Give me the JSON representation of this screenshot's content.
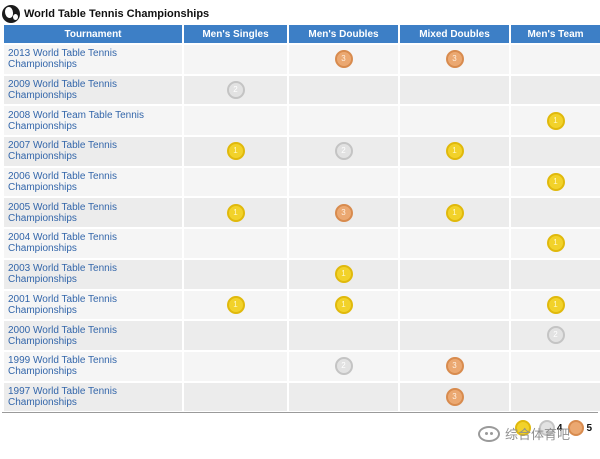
{
  "title": "World Table Tennis Championships",
  "columns": [
    "Tournament",
    "Men's Singles",
    "Men's Doubles",
    "Mixed Doubles",
    "Men's Team"
  ],
  "medal_colors": {
    "gold": "#f2d22a",
    "silver": "#e2e2e2",
    "bronze": "#eba871"
  },
  "medal_numbers": {
    "gold": "1",
    "silver": "2",
    "bronze": "3"
  },
  "rows": [
    {
      "name": "2013 World Table Tennis Championships",
      "medals": {
        "mens_singles": null,
        "mens_doubles": "bronze",
        "mixed_doubles": "bronze",
        "mens_team": null
      }
    },
    {
      "name": "2009 World Table Tennis Championships",
      "medals": {
        "mens_singles": "silver",
        "mens_doubles": null,
        "mixed_doubles": null,
        "mens_team": null
      }
    },
    {
      "name": "2008 World Team Table Tennis Championships",
      "medals": {
        "mens_singles": null,
        "mens_doubles": null,
        "mixed_doubles": null,
        "mens_team": "gold"
      }
    },
    {
      "name": "2007 World Table Tennis Championships",
      "medals": {
        "mens_singles": "gold",
        "mens_doubles": "silver",
        "mixed_doubles": "gold",
        "mens_team": null
      }
    },
    {
      "name": "2006 World Table Tennis Championships",
      "medals": {
        "mens_singles": null,
        "mens_doubles": null,
        "mixed_doubles": null,
        "mens_team": "gold"
      }
    },
    {
      "name": "2005 World Table Tennis Championships",
      "medals": {
        "mens_singles": "gold",
        "mens_doubles": "bronze",
        "mixed_doubles": "gold",
        "mens_team": null
      }
    },
    {
      "name": "2004 World Table Tennis Championships",
      "medals": {
        "mens_singles": null,
        "mens_doubles": null,
        "mixed_doubles": null,
        "mens_team": "gold"
      }
    },
    {
      "name": "2003 World Table Tennis Championships",
      "medals": {
        "mens_singles": null,
        "mens_doubles": "gold",
        "mixed_doubles": null,
        "mens_team": null
      }
    },
    {
      "name": "2001 World Table Tennis Championships",
      "medals": {
        "mens_singles": "gold",
        "mens_doubles": "gold",
        "mixed_doubles": null,
        "mens_team": "gold"
      }
    },
    {
      "name": "2000 World Table Tennis Championships",
      "medals": {
        "mens_singles": null,
        "mens_doubles": null,
        "mixed_doubles": null,
        "mens_team": "silver"
      }
    },
    {
      "name": "1999 World Table Tennis Championships",
      "medals": {
        "mens_singles": null,
        "mens_doubles": "silver",
        "mixed_doubles": "bronze",
        "mens_team": null
      }
    },
    {
      "name": "1997 World Table Tennis Championships",
      "medals": {
        "mens_singles": null,
        "mens_doubles": null,
        "mixed_doubles": "bronze",
        "mens_team": null
      }
    }
  ],
  "tally": [
    {
      "medal": "gold",
      "count": ""
    },
    {
      "medal": "silver",
      "count": "4"
    },
    {
      "medal": "bronze",
      "count": "5"
    }
  ],
  "watermark": {
    "text": "综合体育吧",
    "icon": "wechat-icon"
  }
}
